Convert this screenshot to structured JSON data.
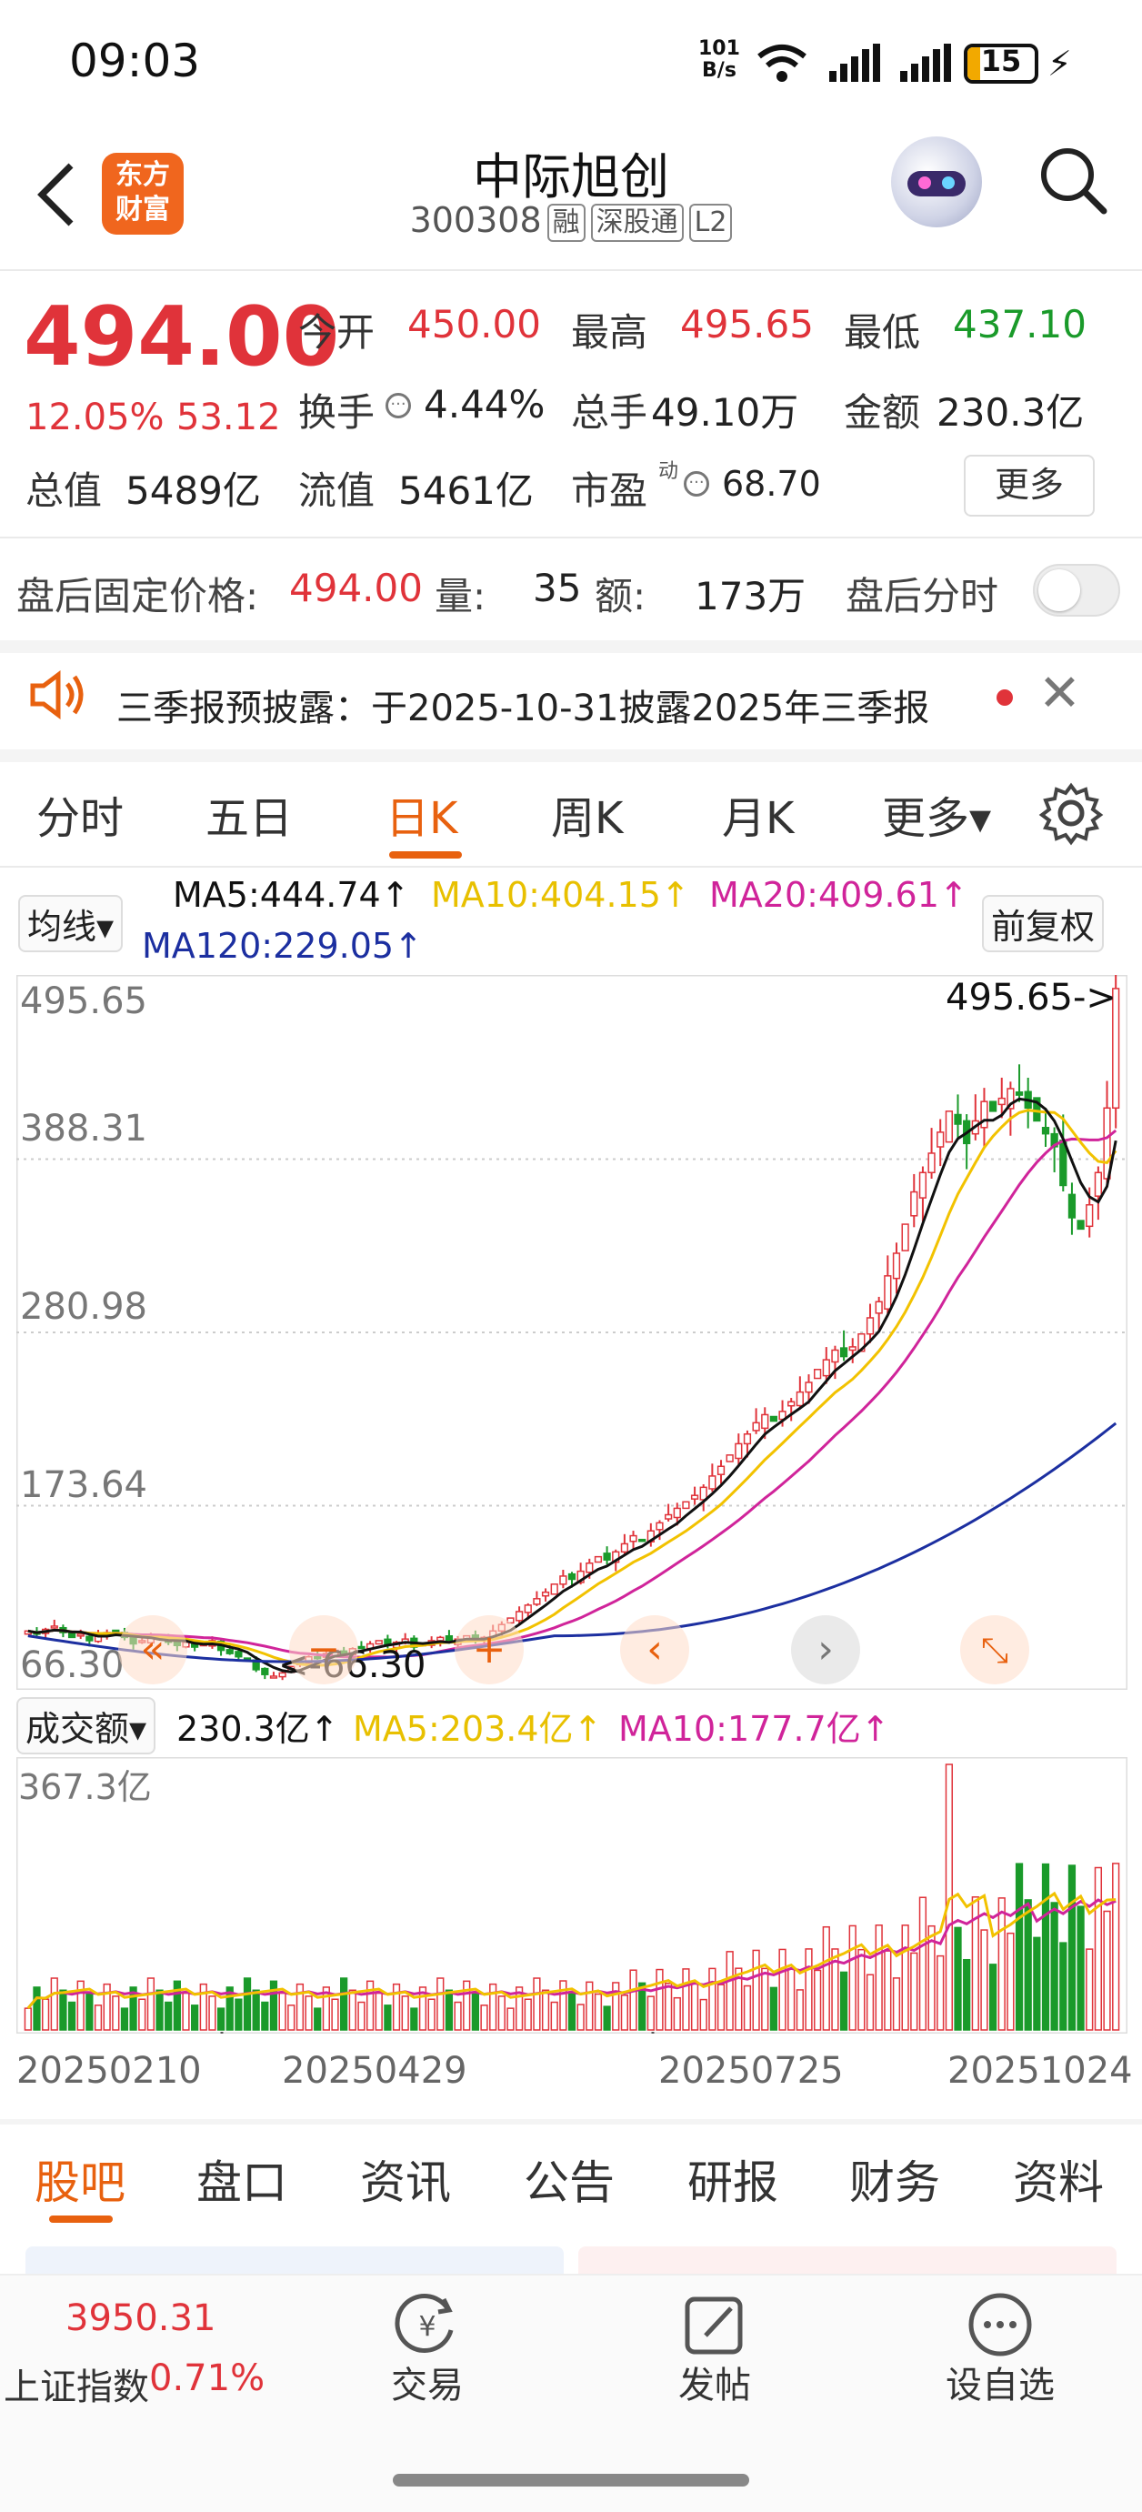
{
  "status_bar": {
    "time": "09:03",
    "net_speed_top": "101",
    "net_speed_bottom": "B/s",
    "battery": "15"
  },
  "header": {
    "title": "中际旭创",
    "code": "300308",
    "tags": [
      "融",
      "深股通",
      "L2"
    ],
    "logo_line1": "东方",
    "logo_line2": "财富"
  },
  "quote": {
    "price": "494.00",
    "change_pct": "12.05%",
    "change_amt": "53.12",
    "open_label": "今开",
    "open": "450.00",
    "high_label": "最高",
    "high": "495.65",
    "low_label": "最低",
    "low": "437.10",
    "turnover_label": "换手",
    "turnover": "4.44%",
    "volume_label": "总手",
    "volume": "49.10万",
    "amount_label": "金额",
    "amount": "230.3亿",
    "mktcap_label": "总值",
    "mktcap": "5489亿",
    "float_label": "流值",
    "float": "5461亿",
    "pe_label": "市盈",
    "pe_sup": "动",
    "pe": "68.70",
    "more": "更多"
  },
  "after_hours": {
    "label": "盘后固定价格:",
    "price": "494.00",
    "vol_label": "量:",
    "vol": "35",
    "amt_label": "额:",
    "amt": "173万",
    "intraday_label": "盘后分时"
  },
  "notice": {
    "text": "三季报预披露：于2025-10-31披露2025年三季报"
  },
  "period_tabs": [
    "分时",
    "五日",
    "日K",
    "周K",
    "月K",
    "更多▾"
  ],
  "ma_legend": {
    "chip": "均线▾",
    "ma5": "MA5:444.74↑",
    "ma10": "MA10:404.15↑",
    "ma20": "MA20:409.61↑",
    "ma120": "MA120:229.05↑",
    "adjust": "前复权"
  },
  "price_axis": {
    "labels": [
      "495.65",
      "388.31",
      "280.98",
      "173.64",
      "66.30"
    ],
    "high_marker": "495.65->",
    "low_marker": "<-66.30"
  },
  "volume_legend": {
    "chip": "成交额▾",
    "value": "230.3亿↑",
    "ma5": "MA5:203.4亿↑",
    "ma10": "MA10:177.7亿↑",
    "axis_max": "367.3亿"
  },
  "dates": [
    "20250210",
    "20250429",
    "20250725",
    "20251024"
  ],
  "bottom_tabs": [
    "股吧",
    "盘口",
    "资讯",
    "公告",
    "研报",
    "财务",
    "资料"
  ],
  "nav": {
    "index_value": "3950.31",
    "index_name": "上证指数",
    "index_pct": "0.71%",
    "trade": "交易",
    "post": "发帖",
    "watch": "设自选"
  },
  "colors": {
    "up": "#e0333a",
    "down": "#1a9a2a",
    "accent": "#e8610f",
    "ma5": "#111111",
    "ma10": "#f2c200",
    "ma20": "#d0249a",
    "ma120": "#1c2fa0"
  },
  "chart_data": {
    "type": "candlestick",
    "x_start": "20250210",
    "x_end": "20251024",
    "ylim": [
      66.3,
      495.65
    ],
    "close": [
      96,
      94,
      97,
      99,
      95,
      92,
      94,
      90,
      93,
      95,
      96,
      92,
      88,
      90,
      93,
      91,
      89,
      87,
      89,
      86,
      88,
      90,
      84,
      82,
      80,
      78,
      72,
      69,
      68,
      70,
      74,
      77,
      80,
      79,
      82,
      84,
      81,
      85,
      86,
      88,
      90,
      87,
      89,
      91,
      86,
      88,
      90,
      92,
      89,
      91,
      93,
      90,
      92,
      96,
      100,
      104,
      108,
      112,
      116,
      120,
      125,
      130,
      128,
      133,
      138,
      142,
      140,
      145,
      150,
      155,
      152,
      158,
      163,
      168,
      172,
      176,
      180,
      185,
      192,
      198,
      205,
      212,
      218,
      225,
      230,
      226,
      232,
      238,
      244,
      250,
      258,
      264,
      270,
      266,
      272,
      280,
      290,
      300,
      316,
      330,
      348,
      368,
      380,
      392,
      405,
      418,
      410,
      398,
      412,
      424,
      418,
      426,
      432,
      428,
      420,
      412,
      404,
      396,
      372,
      352,
      345,
      360,
      380,
      420,
      494
    ],
    "ma5_last": 444.74,
    "ma10_last": 404.15,
    "ma20_last": 409.61,
    "ma120_last": 229.05,
    "volume_ylim": [
      0,
      367.3
    ],
    "volume_last": 230.3,
    "vol_ma5_last": 203.4,
    "vol_ma10_last": 177.7
  }
}
